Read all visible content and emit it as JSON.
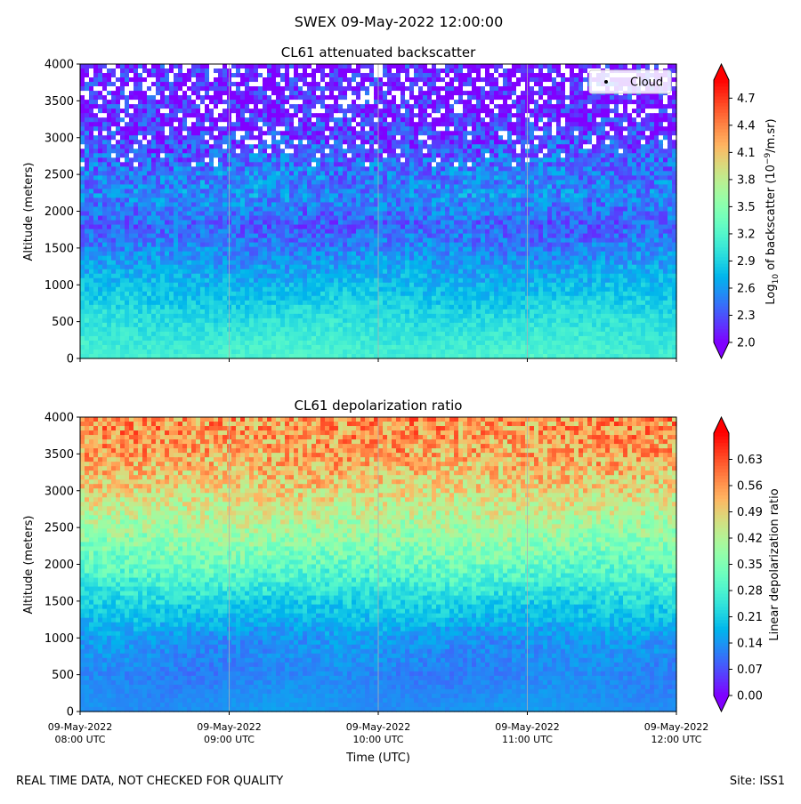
{
  "figure": {
    "suptitle": "SWEX 09-May-2022 12:00:00",
    "footer_left": "REAL TIME DATA, NOT CHECKED FOR QUALITY",
    "footer_right": "Site: ISS1"
  },
  "chart_data": [
    {
      "type": "heatmap",
      "title": "CL61 attenuated backscatter",
      "ylabel": "Altitude (meters)",
      "xlabel": "",
      "ylim": [
        0,
        4000
      ],
      "yticks": [
        0,
        500,
        1000,
        1500,
        2000,
        2500,
        3000,
        3500,
        4000
      ],
      "xlim_hours_utc": [
        8,
        12
      ],
      "xticks": [
        8,
        9,
        10,
        11,
        12
      ],
      "grid": "vertical",
      "legend": {
        "entries": [
          "Cloud"
        ],
        "placement": "top-right",
        "marker": "black-dot"
      },
      "colorbar": {
        "label_prefix": "Log",
        "label_sub": "10",
        "label_mid": " of backscatter (10",
        "label_sup": "−9",
        "label_suffix": "/m.sr)",
        "range": [
          2.0,
          4.9
        ],
        "ticks": [
          "2.0",
          "2.3",
          "2.6",
          "2.9",
          "3.2",
          "3.5",
          "3.8",
          "4.1",
          "4.4",
          "4.7"
        ],
        "colormap": "rainbow",
        "extend": "both"
      },
      "profile": [
        {
          "alt": 0,
          "value": 3.15
        },
        {
          "alt": 200,
          "value": 3.1
        },
        {
          "alt": 600,
          "value": 2.95
        },
        {
          "alt": 1000,
          "value": 2.75
        },
        {
          "alt": 1400,
          "value": 2.55
        },
        {
          "alt": 1800,
          "value": 2.35
        },
        {
          "alt": 2200,
          "value": 2.55
        },
        {
          "alt": 2600,
          "value": 2.45
        },
        {
          "alt": 3000,
          "value": 2.25
        },
        {
          "alt": 3400,
          "value": 2.1
        },
        {
          "alt": 4000,
          "value": 2.05
        }
      ]
    },
    {
      "type": "heatmap",
      "title": "CL61 depolarization ratio",
      "ylabel": "Altitude (meters)",
      "xlabel": "Time (UTC)",
      "ylim": [
        0,
        4000
      ],
      "yticks": [
        0,
        500,
        1000,
        1500,
        2000,
        2500,
        3000,
        3500,
        4000
      ],
      "xlim_hours_utc": [
        8,
        12
      ],
      "xticks": [
        8,
        9,
        10,
        11,
        12
      ],
      "xticklabels": [
        [
          "09-May-2022",
          "08:00 UTC"
        ],
        [
          "09-May-2022",
          "09:00 UTC"
        ],
        [
          "09-May-2022",
          "10:00 UTC"
        ],
        [
          "09-May-2022",
          "11:00 UTC"
        ],
        [
          "09-May-2022",
          "12:00 UTC"
        ]
      ],
      "grid": "vertical",
      "colorbar": {
        "label": "Linear depolarization ratio",
        "range": [
          0.0,
          0.7
        ],
        "ticks": [
          "0.00",
          "0.07",
          "0.14",
          "0.21",
          "0.28",
          "0.35",
          "0.42",
          "0.49",
          "0.56",
          "0.63"
        ],
        "colormap": "rainbow",
        "extend": "both"
      },
      "profile": [
        {
          "alt": 0,
          "value": 0.14
        },
        {
          "alt": 500,
          "value": 0.12
        },
        {
          "alt": 1000,
          "value": 0.14
        },
        {
          "alt": 1500,
          "value": 0.22
        },
        {
          "alt": 2000,
          "value": 0.32
        },
        {
          "alt": 2500,
          "value": 0.4
        },
        {
          "alt": 3000,
          "value": 0.48
        },
        {
          "alt": 3500,
          "value": 0.54
        },
        {
          "alt": 4000,
          "value": 0.56
        }
      ]
    }
  ]
}
